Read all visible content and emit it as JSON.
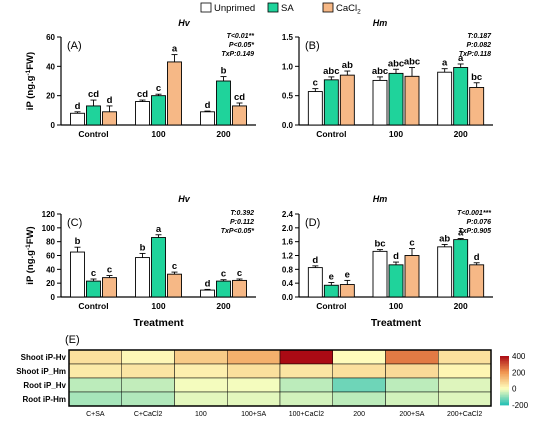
{
  "legend": {
    "items": [
      {
        "label": "Unprimed",
        "color": "#ffffff"
      },
      {
        "label": "SA",
        "color": "#1fd39b"
      },
      {
        "label": "CaCl",
        "sub": "2",
        "color": "#f6b886"
      }
    ]
  },
  "chart_data": [
    {
      "id": "A",
      "type": "bar",
      "panel_label": "(A)",
      "title": "Hv",
      "ylabel": "iP (ng.g",
      "ylabel_sup": "-1",
      "ylabel_end": "FW)",
      "xlabel": "",
      "ylim": [
        0,
        60
      ],
      "yticks": [
        "0",
        "20",
        "40",
        "60"
      ],
      "categories": [
        "Control",
        "100",
        "200"
      ],
      "series": [
        {
          "name": "Unprimed",
          "values": [
            8,
            16,
            9
          ],
          "errors": [
            1,
            1,
            0.5
          ],
          "letters": [
            "d",
            "cd",
            "d"
          ]
        },
        {
          "name": "SA",
          "values": [
            13,
            20,
            30
          ],
          "errors": [
            4,
            1,
            3
          ],
          "letters": [
            "cd",
            "c",
            "b"
          ]
        },
        {
          "name": "CaCl2",
          "values": [
            9,
            43,
            13
          ],
          "errors": [
            4,
            5,
            2
          ],
          "letters": [
            "d",
            "a",
            "cd"
          ]
        }
      ],
      "stats": [
        "T<0.01**",
        "P<0.05*",
        "TxP:0.149"
      ]
    },
    {
      "id": "B",
      "type": "bar",
      "panel_label": "(B)",
      "title": "Hm",
      "ylabel": "",
      "xlabel": "",
      "ylim": [
        0,
        1.5
      ],
      "yticks": [
        "0.0",
        "0.5",
        "1.0",
        "1.5"
      ],
      "categories": [
        "Control",
        "100",
        "200"
      ],
      "series": [
        {
          "name": "Unprimed",
          "values": [
            0.57,
            0.76,
            0.9
          ],
          "errors": [
            0.05,
            0.06,
            0.06
          ],
          "letters": [
            "c",
            "abc",
            "a"
          ]
        },
        {
          "name": "SA",
          "values": [
            0.77,
            0.88,
            0.98
          ],
          "errors": [
            0.05,
            0.07,
            0.06
          ],
          "letters": [
            "abc",
            "abc",
            "a"
          ]
        },
        {
          "name": "CaCl2",
          "values": [
            0.85,
            0.83,
            0.64
          ],
          "errors": [
            0.07,
            0.15,
            0.08
          ],
          "letters": [
            "ab",
            "abc",
            "bc"
          ]
        }
      ],
      "stats": [
        "T:0.187",
        "P:0.082",
        "TxP:0.118"
      ]
    },
    {
      "id": "C",
      "type": "bar",
      "panel_label": "(C)",
      "title": "Hv",
      "ylabel": "iP (ng.g",
      "ylabel_sup": "-1",
      "ylabel_end": "FW)",
      "xlabel": "Treatment",
      "ylim": [
        0,
        120
      ],
      "yticks": [
        "0",
        "20",
        "40",
        "60",
        "80",
        "100",
        "120"
      ],
      "categories": [
        "Control",
        "100",
        "200"
      ],
      "series": [
        {
          "name": "Unprimed",
          "values": [
            65,
            57,
            10
          ],
          "errors": [
            7,
            6,
            1
          ],
          "letters": [
            "b",
            "b",
            "d"
          ]
        },
        {
          "name": "SA",
          "values": [
            23,
            86,
            23
          ],
          "errors": [
            3,
            4,
            2
          ],
          "letters": [
            "c",
            "a",
            "c"
          ]
        },
        {
          "name": "CaCl2",
          "values": [
            28,
            33,
            24
          ],
          "errors": [
            3,
            3,
            2
          ],
          "letters": [
            "c",
            "c",
            "c"
          ]
        }
      ],
      "stats": [
        "T:0.392",
        "P:0.112",
        "TxP<0.05*"
      ]
    },
    {
      "id": "D",
      "type": "bar",
      "panel_label": "(D)",
      "title": "Hm",
      "ylabel": "",
      "xlabel": "Treatment",
      "ylim": [
        0,
        2.4
      ],
      "yticks": [
        "0.0",
        "0.4",
        "0.8",
        "1.2",
        "1.6",
        "2.0",
        "2.4"
      ],
      "categories": [
        "Control",
        "100",
        "200"
      ],
      "series": [
        {
          "name": "Unprimed",
          "values": [
            0.85,
            1.32,
            1.45
          ],
          "errors": [
            0.05,
            0.05,
            0.07
          ],
          "letters": [
            "d",
            "bc",
            "ab"
          ]
        },
        {
          "name": "SA",
          "values": [
            0.34,
            0.93,
            1.66
          ],
          "errors": [
            0.08,
            0.08,
            0.03
          ],
          "letters": [
            "e",
            "d",
            "a"
          ]
        },
        {
          "name": "CaCl2",
          "values": [
            0.36,
            1.2,
            0.93
          ],
          "errors": [
            0.12,
            0.2,
            0.06
          ],
          "letters": [
            "e",
            "c",
            "d"
          ]
        }
      ],
      "stats": [
        "T<0.001***",
        "P:0.076",
        "TxP:0.905"
      ]
    },
    {
      "id": "E",
      "type": "heatmap",
      "panel_label": "(E)",
      "rows": [
        "Shoot iP-Hv",
        "Shoot iP_Hm",
        "Root iP_Hv",
        "Root iP-Hm"
      ],
      "columns": [
        "C+SA",
        "C+CaCl2",
        "100",
        "100+SA",
        "100+CaCl2",
        "200",
        "200+SA",
        "200+CaCl2"
      ],
      "values": [
        [
          60,
          15,
          100,
          150,
          430,
          5,
          240,
          60
        ],
        [
          40,
          50,
          30,
          60,
          50,
          60,
          70,
          20
        ],
        [
          -60,
          -55,
          -10,
          -10,
          -60,
          -130,
          -60,
          -30
        ],
        [
          -80,
          -70,
          -25,
          -25,
          -40,
          -60,
          -40,
          -30
        ]
      ],
      "scale": {
        "min": -200,
        "max": 400,
        "ticks": [
          "400",
          "200",
          "0",
          "-200"
        ]
      }
    }
  ]
}
